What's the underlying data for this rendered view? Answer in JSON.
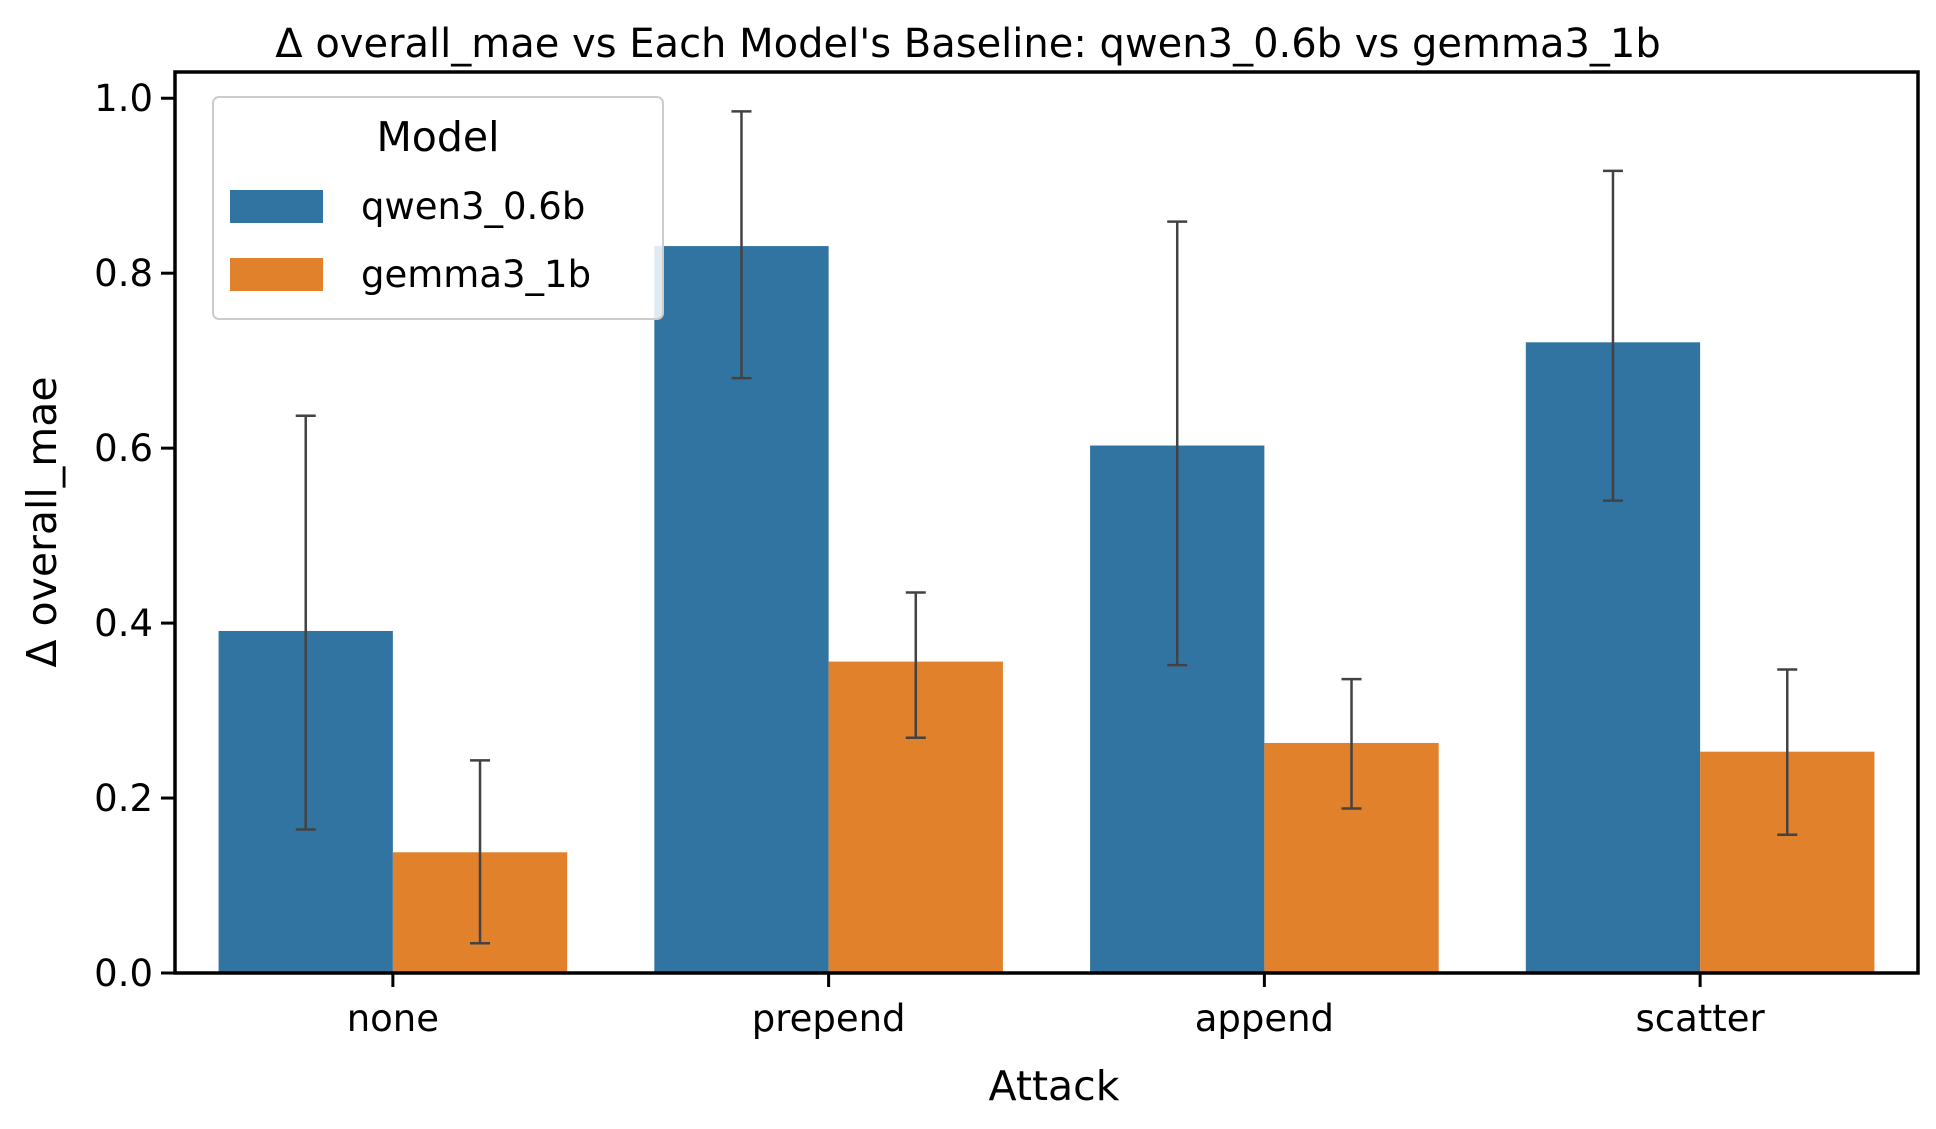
{
  "chart_data": {
    "type": "bar",
    "title": "Δ overall_mae vs Each Model's Baseline: qwen3_0.6b vs gemma3_1b",
    "xlabel": "Attack",
    "ylabel": "Δ overall_mae",
    "categories": [
      "none",
      "prepend",
      "append",
      "scatter"
    ],
    "ylim": [
      0,
      1.03
    ],
    "yticks": [
      "0.0",
      "0.2",
      "0.4",
      "0.6",
      "0.8",
      "1.0"
    ],
    "grid": false,
    "legend": {
      "title": "Model",
      "placement": "top-left"
    },
    "series": [
      {
        "name": "qwen3_0.6b",
        "color": "#3274a1",
        "values": [
          0.391,
          0.831,
          0.603,
          0.721
        ],
        "error_low": [
          0.164,
          0.68,
          0.352,
          0.54
        ],
        "error_high": [
          0.637,
          0.985,
          0.859,
          0.917
        ]
      },
      {
        "name": "gemma3_1b",
        "color": "#e1812c",
        "values": [
          0.138,
          0.356,
          0.263,
          0.253
        ],
        "error_low": [
          0.034,
          0.269,
          0.188,
          0.158
        ],
        "error_high": [
          0.243,
          0.435,
          0.336,
          0.347
        ]
      }
    ]
  }
}
